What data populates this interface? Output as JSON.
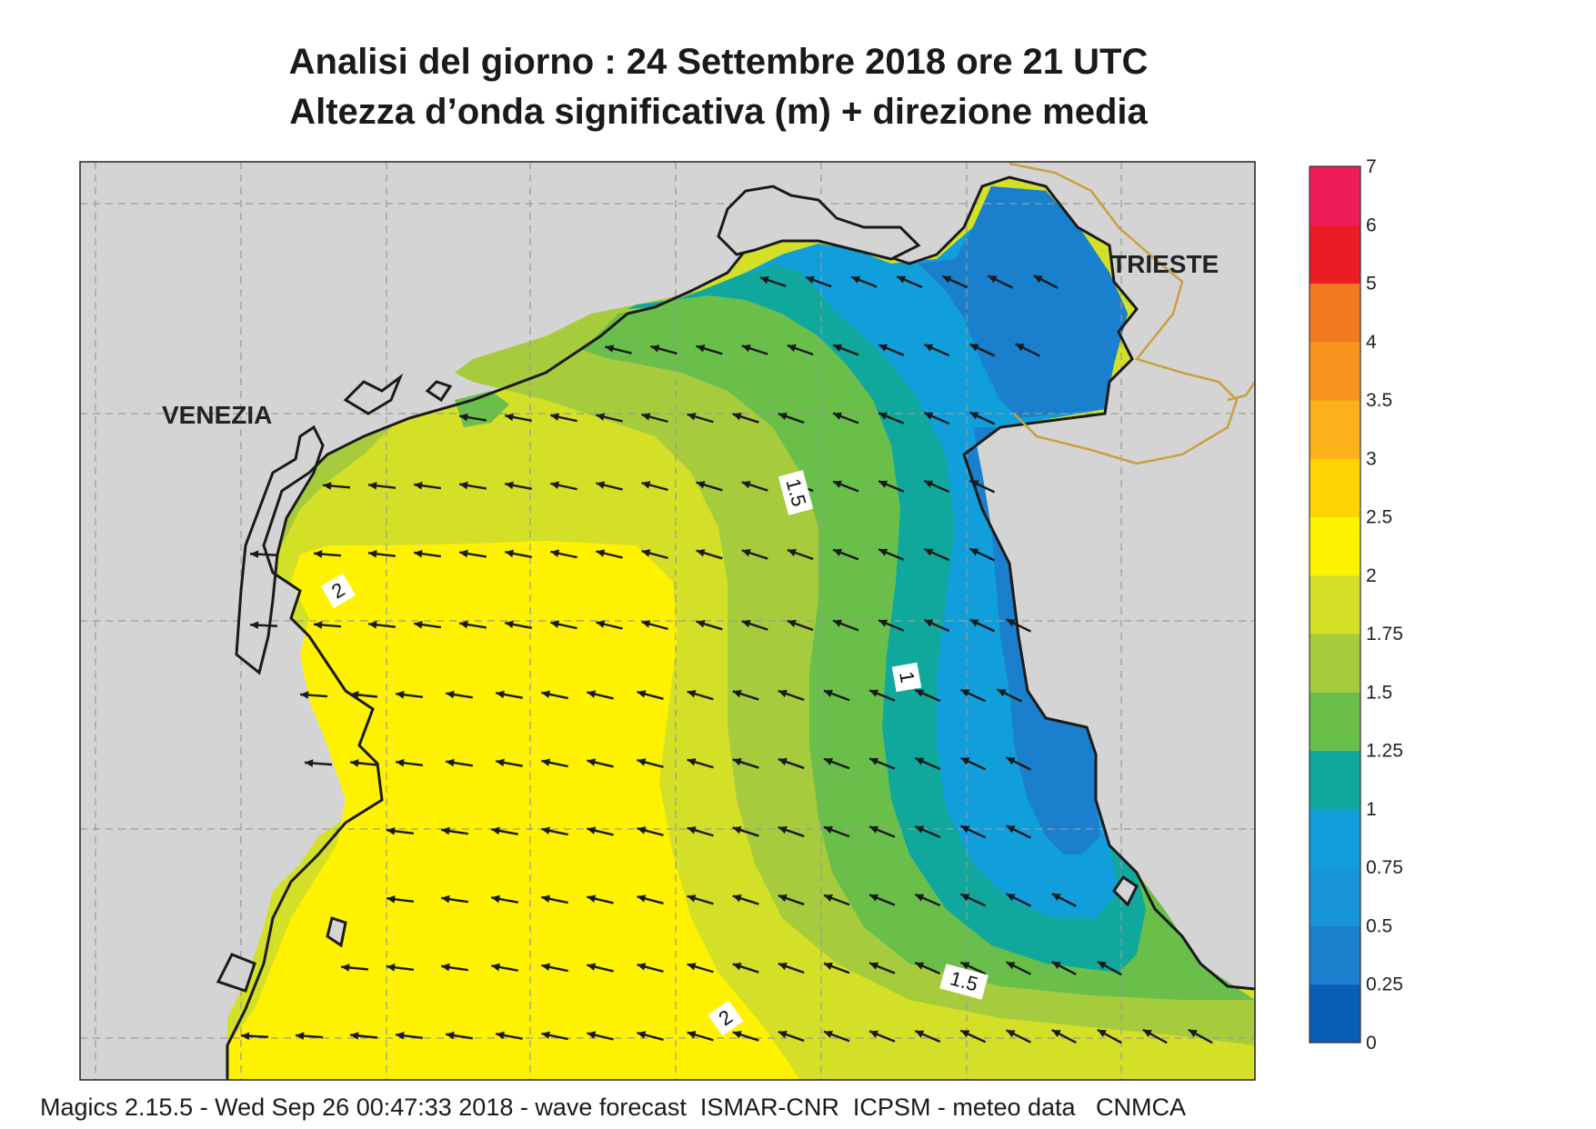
{
  "title_line1": "Analisi del giorno :  24 Settembre 2018   ore 21 UTC",
  "title_line2": "Altezza d’onda significativa (m) + direzione media",
  "footer": "Magics 2.15.5 - Wed Sep 26 00:47:33 2018 - wave forecast  ISMAR-CNR  ICPSM - meteo data   CNMCA",
  "places": {
    "venezia": "VENEZIA",
    "trieste": "TRIESTE"
  },
  "contour_labels": [
    "1.5",
    "1",
    "2",
    "2",
    "1.5"
  ],
  "legend": {
    "levels": [
      "0",
      "0.25",
      "0.5",
      "0.75",
      "1",
      "1.25",
      "1.5",
      "1.75",
      "2",
      "2.5",
      "3",
      "3.5",
      "4",
      "5",
      "6",
      "7"
    ],
    "colors": [
      "#0a5fb4",
      "#1a7fcc",
      "#1793d9",
      "#119fdc",
      "#10a89d",
      "#6abf4b",
      "#a6cb3c",
      "#d4df27",
      "#fff200",
      "#ffd400",
      "#fbb21a",
      "#f7941d",
      "#f47a20",
      "#ec1c24",
      "#ee1c5b"
    ]
  },
  "colors": {
    "land": "#d4d4d4",
    "coast": "#1a1a1a",
    "border": "#c8a040",
    "arrow": "#1a1a1a",
    "grid": "#9a9a9a"
  },
  "vector_field": {
    "quantity": "mean wave direction",
    "toward": "west-southwest"
  }
}
